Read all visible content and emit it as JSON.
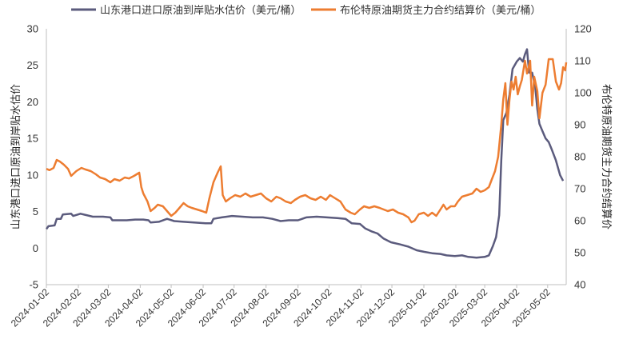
{
  "chart_data": {
    "type": "line",
    "legend_position": "top",
    "grid": false,
    "colors": {
      "series0": "#5b5b7d",
      "series1": "#ed7d31"
    },
    "x_range": [
      "2024-01-02",
      "2025-05-20"
    ],
    "x_ticks": [
      "2024-01-02",
      "2024-02-02",
      "2024-03-02",
      "2024-04-02",
      "2024-05-02",
      "2024-06-02",
      "2024-07-02",
      "2024-08-02",
      "2024-09-02",
      "2024-10-02",
      "2024-11-02",
      "2024-12-02",
      "2025-01-02",
      "2025-02-02",
      "2025-03-02",
      "2025-04-02",
      "2025-05-02"
    ],
    "y_left": {
      "label": "山东港口进口原油到岸贴水估价",
      "min": -5,
      "max": 30,
      "ticks": [
        "-5",
        "0",
        "5",
        "10",
        "15",
        "20",
        "25",
        "30"
      ]
    },
    "y_right": {
      "label": "布伦特原油期货主力合约结算价",
      "min": 40,
      "max": 120,
      "ticks": [
        "40",
        "50",
        "60",
        "70",
        "80",
        "90",
        "100",
        "110",
        "120"
      ]
    },
    "series": [
      {
        "name": "山东港口进口原油到岸贴水估价（美元/桶）",
        "axis": "left",
        "points": [
          [
            "2024-01-02",
            2.6
          ],
          [
            "2024-01-04",
            3.0
          ],
          [
            "2024-01-10",
            3.1
          ],
          [
            "2024-01-12",
            4.0
          ],
          [
            "2024-01-16",
            4.0
          ],
          [
            "2024-01-18",
            4.6
          ],
          [
            "2024-01-26",
            4.7
          ],
          [
            "2024-01-28",
            4.4
          ],
          [
            "2024-02-04",
            4.7
          ],
          [
            "2024-02-10",
            4.5
          ],
          [
            "2024-02-16",
            4.3
          ],
          [
            "2024-02-26",
            4.3
          ],
          [
            "2024-03-04",
            4.2
          ],
          [
            "2024-03-06",
            3.8
          ],
          [
            "2024-03-20",
            3.8
          ],
          [
            "2024-03-28",
            3.9
          ],
          [
            "2024-04-05",
            3.9
          ],
          [
            "2024-04-10",
            3.8
          ],
          [
            "2024-04-12",
            3.5
          ],
          [
            "2024-04-20",
            3.6
          ],
          [
            "2024-04-28",
            4.0
          ],
          [
            "2024-05-05",
            3.7
          ],
          [
            "2024-05-14",
            3.6
          ],
          [
            "2024-05-24",
            3.5
          ],
          [
            "2024-06-04",
            3.4
          ],
          [
            "2024-06-10",
            3.4
          ],
          [
            "2024-06-12",
            4.0
          ],
          [
            "2024-06-20",
            4.2
          ],
          [
            "2024-06-30",
            4.4
          ],
          [
            "2024-07-10",
            4.3
          ],
          [
            "2024-07-20",
            4.2
          ],
          [
            "2024-07-30",
            4.2
          ],
          [
            "2024-08-08",
            4.0
          ],
          [
            "2024-08-16",
            3.7
          ],
          [
            "2024-08-24",
            3.8
          ],
          [
            "2024-09-02",
            3.8
          ],
          [
            "2024-09-10",
            4.2
          ],
          [
            "2024-09-20",
            4.3
          ],
          [
            "2024-09-30",
            4.2
          ],
          [
            "2024-10-10",
            4.1
          ],
          [
            "2024-10-18",
            4.0
          ],
          [
            "2024-10-24",
            3.4
          ],
          [
            "2024-11-01",
            3.3
          ],
          [
            "2024-11-06",
            2.7
          ],
          [
            "2024-11-12",
            2.3
          ],
          [
            "2024-11-18",
            2.0
          ],
          [
            "2024-11-24",
            1.3
          ],
          [
            "2024-12-01",
            0.8
          ],
          [
            "2024-12-10",
            0.5
          ],
          [
            "2024-12-18",
            0.2
          ],
          [
            "2024-12-26",
            -0.3
          ],
          [
            "2025-01-02",
            -0.5
          ],
          [
            "2025-01-10",
            -0.7
          ],
          [
            "2025-01-18",
            -0.8
          ],
          [
            "2025-01-24",
            -1.0
          ],
          [
            "2025-02-01",
            -1.1
          ],
          [
            "2025-02-08",
            -1.0
          ],
          [
            "2025-02-14",
            -1.2
          ],
          [
            "2025-02-22",
            -1.3
          ],
          [
            "2025-03-02",
            -1.2
          ],
          [
            "2025-03-06",
            -1.0
          ],
          [
            "2025-03-10",
            0.3
          ],
          [
            "2025-03-13",
            1.5
          ],
          [
            "2025-03-16",
            4.5
          ],
          [
            "2025-03-18",
            12.0
          ],
          [
            "2025-03-20",
            17.5
          ],
          [
            "2025-03-23",
            18.5
          ],
          [
            "2025-03-26",
            21.0
          ],
          [
            "2025-03-29",
            24.5
          ],
          [
            "2025-04-02",
            25.5
          ],
          [
            "2025-04-05",
            26.0
          ],
          [
            "2025-04-08",
            25.5
          ],
          [
            "2025-04-10",
            26.5
          ],
          [
            "2025-04-12",
            27.2
          ],
          [
            "2025-04-14",
            24.0
          ],
          [
            "2025-04-17",
            24.0
          ],
          [
            "2025-04-20",
            22.0
          ],
          [
            "2025-04-22",
            19.0
          ],
          [
            "2025-04-24",
            17.0
          ],
          [
            "2025-04-27",
            16.0
          ],
          [
            "2025-04-30",
            15.0
          ],
          [
            "2025-05-03",
            14.5
          ],
          [
            "2025-05-06",
            13.5
          ],
          [
            "2025-05-10",
            12.0
          ],
          [
            "2025-05-14",
            10.0
          ],
          [
            "2025-05-17",
            9.2
          ]
        ]
      },
      {
        "name": "布伦特原油期货主力合约结算价（美元/桶）",
        "axis": "right",
        "points": [
          [
            "2024-01-02",
            76.2
          ],
          [
            "2024-01-05",
            75.8
          ],
          [
            "2024-01-09",
            76.5
          ],
          [
            "2024-01-12",
            79.0
          ],
          [
            "2024-01-15",
            78.5
          ],
          [
            "2024-01-19",
            77.5
          ],
          [
            "2024-01-23",
            76.2
          ],
          [
            "2024-01-26",
            74.0
          ],
          [
            "2024-01-31",
            75.5
          ],
          [
            "2024-02-05",
            76.5
          ],
          [
            "2024-02-09",
            76.0
          ],
          [
            "2024-02-14",
            75.5
          ],
          [
            "2024-02-19",
            74.5
          ],
          [
            "2024-02-23",
            73.5
          ],
          [
            "2024-02-28",
            73.0
          ],
          [
            "2024-03-04",
            72.0
          ],
          [
            "2024-03-08",
            73.0
          ],
          [
            "2024-03-13",
            72.5
          ],
          [
            "2024-03-18",
            73.5
          ],
          [
            "2024-03-22",
            73.2
          ],
          [
            "2024-03-27",
            74.0
          ],
          [
            "2024-04-01",
            75.0
          ],
          [
            "2024-04-03",
            70.5
          ],
          [
            "2024-04-05",
            68.5
          ],
          [
            "2024-04-09",
            66.0
          ],
          [
            "2024-04-12",
            63.0
          ],
          [
            "2024-04-16",
            64.0
          ],
          [
            "2024-04-19",
            65.0
          ],
          [
            "2024-04-24",
            64.5
          ],
          [
            "2024-04-28",
            63.0
          ],
          [
            "2024-05-02",
            61.5
          ],
          [
            "2024-05-06",
            62.5
          ],
          [
            "2024-05-10",
            64.0
          ],
          [
            "2024-05-14",
            65.5
          ],
          [
            "2024-05-18",
            64.5
          ],
          [
            "2024-05-22",
            64.0
          ],
          [
            "2024-05-27",
            63.5
          ],
          [
            "2024-06-01",
            63.0
          ],
          [
            "2024-06-05",
            62.5
          ],
          [
            "2024-06-08",
            67.0
          ],
          [
            "2024-06-12",
            72.0
          ],
          [
            "2024-06-16",
            75.0
          ],
          [
            "2024-06-19",
            77.0
          ],
          [
            "2024-06-21",
            68.0
          ],
          [
            "2024-06-24",
            66.0
          ],
          [
            "2024-06-28",
            67.0
          ],
          [
            "2024-07-03",
            68.0
          ],
          [
            "2024-07-08",
            67.5
          ],
          [
            "2024-07-13",
            68.5
          ],
          [
            "2024-07-18",
            67.5
          ],
          [
            "2024-07-23",
            68.0
          ],
          [
            "2024-07-28",
            68.5
          ],
          [
            "2024-08-02",
            67.0
          ],
          [
            "2024-08-07",
            66.0
          ],
          [
            "2024-08-12",
            67.5
          ],
          [
            "2024-08-16",
            67.0
          ],
          [
            "2024-08-21",
            66.0
          ],
          [
            "2024-08-26",
            65.5
          ],
          [
            "2024-08-30",
            66.5
          ],
          [
            "2024-09-04",
            67.5
          ],
          [
            "2024-09-09",
            68.0
          ],
          [
            "2024-09-14",
            67.0
          ],
          [
            "2024-09-19",
            66.5
          ],
          [
            "2024-09-24",
            67.5
          ],
          [
            "2024-09-29",
            66.5
          ],
          [
            "2024-10-03",
            68.0
          ],
          [
            "2024-10-08",
            67.0
          ],
          [
            "2024-10-13",
            66.0
          ],
          [
            "2024-10-18",
            63.5
          ],
          [
            "2024-10-23",
            62.5
          ],
          [
            "2024-10-27",
            62.0
          ],
          [
            "2024-11-01",
            63.5
          ],
          [
            "2024-11-05",
            64.5
          ],
          [
            "2024-11-10",
            64.0
          ],
          [
            "2024-11-15",
            64.5
          ],
          [
            "2024-11-20",
            64.0
          ],
          [
            "2024-11-24",
            63.5
          ],
          [
            "2024-11-28",
            63.0
          ],
          [
            "2024-12-03",
            63.5
          ],
          [
            "2024-12-08",
            62.5
          ],
          [
            "2024-12-13",
            62.0
          ],
          [
            "2024-12-18",
            61.0
          ],
          [
            "2024-12-21",
            59.5
          ],
          [
            "2024-12-24",
            60.0
          ],
          [
            "2024-12-28",
            62.0
          ],
          [
            "2025-01-02",
            62.5
          ],
          [
            "2025-01-06",
            61.5
          ],
          [
            "2025-01-10",
            62.5
          ],
          [
            "2025-01-14",
            61.5
          ],
          [
            "2025-01-18",
            63.5
          ],
          [
            "2025-01-21",
            65.0
          ],
          [
            "2025-01-24",
            63.5
          ],
          [
            "2025-01-28",
            64.5
          ],
          [
            "2025-02-01",
            64.5
          ],
          [
            "2025-02-04",
            66.0
          ],
          [
            "2025-02-08",
            67.5
          ],
          [
            "2025-02-13",
            68.0
          ],
          [
            "2025-02-18",
            68.5
          ],
          [
            "2025-02-22",
            70.0
          ],
          [
            "2025-02-26",
            69.0
          ],
          [
            "2025-03-02",
            69.5
          ],
          [
            "2025-03-06",
            70.5
          ],
          [
            "2025-03-09",
            73.0
          ],
          [
            "2025-03-12",
            75.5
          ],
          [
            "2025-03-15",
            80.0
          ],
          [
            "2025-03-18",
            90.0
          ],
          [
            "2025-03-20",
            98.0
          ],
          [
            "2025-03-22",
            103.0
          ],
          [
            "2025-03-24",
            90.0
          ],
          [
            "2025-03-26",
            98.0
          ],
          [
            "2025-03-28",
            103.5
          ],
          [
            "2025-03-30",
            101.0
          ],
          [
            "2025-04-01",
            105.0
          ],
          [
            "2025-04-03",
            99.5
          ],
          [
            "2025-04-05",
            102.0
          ],
          [
            "2025-04-07",
            104.0
          ],
          [
            "2025-04-10",
            110.0
          ],
          [
            "2025-04-12",
            106.0
          ],
          [
            "2025-04-15",
            110.0
          ],
          [
            "2025-04-17",
            96.0
          ],
          [
            "2025-04-19",
            105.0
          ],
          [
            "2025-04-22",
            100.5
          ],
          [
            "2025-04-24",
            92.0
          ],
          [
            "2025-04-27",
            100.0
          ],
          [
            "2025-04-30",
            102.5
          ],
          [
            "2025-05-03",
            110.5
          ],
          [
            "2025-05-07",
            110.5
          ],
          [
            "2025-05-10",
            103.5
          ],
          [
            "2025-05-13",
            101.0
          ],
          [
            "2025-05-15",
            103.0
          ],
          [
            "2025-05-17",
            108.0
          ],
          [
            "2025-05-19",
            107.0
          ],
          [
            "2025-05-20",
            109.5
          ]
        ]
      }
    ]
  }
}
